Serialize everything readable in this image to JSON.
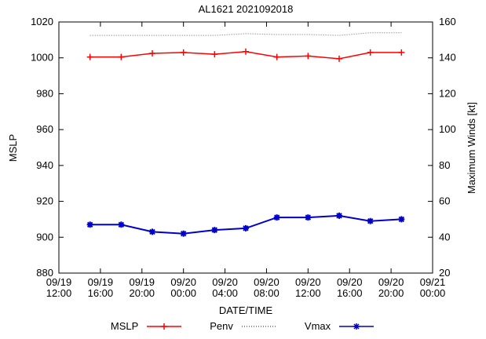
{
  "title": "AL1621 2021092018",
  "axes": {
    "left_label": "MSLP",
    "right_label": "Maximum Winds [kt]",
    "x_label": "DATE/TIME"
  },
  "legend": [
    {
      "label": "MSLP",
      "color": "#ff0000",
      "style": "solid",
      "marker": "plus"
    },
    {
      "label": "Penv",
      "color": "#666666",
      "style": "dotted",
      "dash": "1,2",
      "marker": "none"
    },
    {
      "label": "Vmax",
      "color": "#0000cc",
      "style": "solid",
      "marker": "asterisk"
    }
  ],
  "chart_data": {
    "type": "line",
    "title": "AL1621 2021092018",
    "xlabel": "DATE/TIME",
    "ylabel_left": "MSLP",
    "ylabel_right": "Maximum Winds [kt]",
    "xlim": [
      0,
      36
    ],
    "left_ylim": [
      880,
      1020
    ],
    "right_ylim": [
      20,
      160
    ],
    "grid": false,
    "legend_position": "bottom-center",
    "left_ticks": [
      880,
      900,
      920,
      940,
      960,
      980,
      1000,
      1020
    ],
    "right_ticks": [
      20,
      40,
      60,
      80,
      100,
      120,
      140,
      160
    ],
    "x_ticks": [
      {
        "hour": 0,
        "date": "09/19",
        "time": "12:00"
      },
      {
        "hour": 4,
        "date": "09/19",
        "time": "16:00"
      },
      {
        "hour": 8,
        "date": "09/19",
        "time": "20:00"
      },
      {
        "hour": 12,
        "date": "09/20",
        "time": "00:00"
      },
      {
        "hour": 16,
        "date": "09/20",
        "time": "04:00"
      },
      {
        "hour": 20,
        "date": "09/20",
        "time": "08:00"
      },
      {
        "hour": 24,
        "date": "09/20",
        "time": "12:00"
      },
      {
        "hour": 28,
        "date": "09/20",
        "time": "16:00"
      },
      {
        "hour": 32,
        "date": "09/20",
        "time": "20:00"
      },
      {
        "hour": 36,
        "date": "09/21",
        "time": "00:00"
      }
    ],
    "x_hours": [
      3,
      6,
      9,
      12,
      15,
      18,
      21,
      24,
      27,
      30,
      33
    ],
    "series": [
      {
        "name": "MSLP",
        "axis": "left",
        "color": "#ff0000",
        "marker": "plus",
        "width": 1.5,
        "values": [
          1000.5,
          1000.5,
          1002.5,
          1003,
          1002,
          1003.5,
          1000.5,
          1001,
          999.5,
          1003,
          1003
        ]
      },
      {
        "name": "Penv",
        "axis": "left",
        "color": "#666666",
        "dash": "1,2",
        "width": 1,
        "values": [
          1012.5,
          1012.5,
          1012.5,
          1012.5,
          1012.5,
          1013.5,
          1013,
          1013,
          1012.5,
          1014,
          1014
        ]
      },
      {
        "name": "Vmax",
        "axis": "right",
        "color": "#0000cc",
        "marker": "asterisk",
        "width": 2,
        "values": [
          47,
          47,
          43,
          42,
          44,
          45,
          51,
          51,
          52,
          49,
          50
        ]
      }
    ]
  }
}
